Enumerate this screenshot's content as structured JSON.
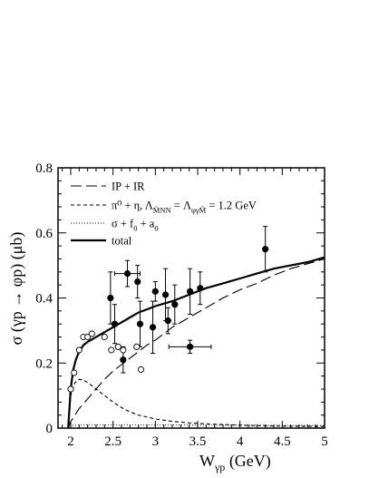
{
  "chart_data": {
    "type": "scatter",
    "xlabel_main": "W",
    "xlabel_sub": "γp",
    "xlabel_unit": " (GeV)",
    "ylabel": "σ (γp → φp) (μb)",
    "xlim": [
      1.85,
      5.0
    ],
    "ylim": [
      0,
      0.8
    ],
    "x_ticks": [
      2,
      2.5,
      3,
      3.5,
      4,
      4.5,
      5
    ],
    "x_tick_labels": [
      "2",
      "2.5",
      "3",
      "3.5",
      "4",
      "4.5",
      "5"
    ],
    "y_ticks": [
      0,
      0.2,
      0.4,
      0.6,
      0.8
    ],
    "y_tick_labels": [
      "0",
      "0.2",
      "0.4",
      "0.6",
      "0.8"
    ],
    "grid": false,
    "legend_position": "top-left",
    "legend": [
      {
        "style": "longdash",
        "text": "IP + IR"
      },
      {
        "style": "dash",
        "text": "π⁰ + η,   Λ",
        "sub1": "M̃NN",
        "mid": " = Λ",
        "sub2": "φγM̃",
        "tail": " = 1.2 GeV"
      },
      {
        "style": "dot",
        "text": "σ + f",
        "sub1": "0",
        "mid": " + a",
        "sub2": "0"
      },
      {
        "style": "solid",
        "text": "total"
      }
    ],
    "series": [
      {
        "style": "longdash",
        "x": [
          1.97,
          2.0,
          2.05,
          2.1,
          2.2,
          2.3,
          2.4,
          2.5,
          2.6,
          2.7,
          2.8,
          2.9,
          3.0,
          3.1,
          3.2,
          3.4,
          3.6,
          3.8,
          4.0,
          4.2,
          4.4,
          4.6,
          4.8,
          5.0
        ],
        "y": [
          0.0,
          0.02,
          0.04,
          0.06,
          0.09,
          0.12,
          0.15,
          0.175,
          0.195,
          0.215,
          0.235,
          0.255,
          0.27,
          0.29,
          0.31,
          0.34,
          0.37,
          0.4,
          0.425,
          0.445,
          0.47,
          0.49,
          0.505,
          0.52
        ]
      },
      {
        "style": "dash",
        "x": [
          1.97,
          2.0,
          2.05,
          2.1,
          2.15,
          2.2,
          2.3,
          2.4,
          2.5,
          2.6,
          2.7,
          2.8,
          3.0,
          3.2,
          3.4,
          3.6,
          3.8,
          4.0,
          4.5,
          5.0
        ],
        "y": [
          0.0,
          0.1,
          0.14,
          0.15,
          0.148,
          0.14,
          0.12,
          0.1,
          0.08,
          0.063,
          0.05,
          0.04,
          0.028,
          0.021,
          0.016,
          0.013,
          0.011,
          0.009,
          0.006,
          0.005
        ]
      },
      {
        "style": "dot",
        "x": [
          1.97,
          2.0,
          2.2,
          2.5,
          3.0,
          3.5,
          4.0,
          4.5,
          5.0
        ],
        "y": [
          0.0,
          0.008,
          0.01,
          0.01,
          0.01,
          0.009,
          0.009,
          0.008,
          0.008
        ]
      },
      {
        "style": "solid",
        "x": [
          1.97,
          2.0,
          2.03,
          2.06,
          2.1,
          2.15,
          2.2,
          2.3,
          2.4,
          2.5,
          2.6,
          2.7,
          2.8,
          2.9,
          3.0,
          3.2,
          3.4,
          3.6,
          3.8,
          4.0,
          4.2,
          4.4,
          4.6,
          4.8,
          5.0
        ],
        "y": [
          0.0,
          0.12,
          0.18,
          0.21,
          0.235,
          0.255,
          0.265,
          0.28,
          0.295,
          0.31,
          0.325,
          0.34,
          0.355,
          0.365,
          0.375,
          0.39,
          0.41,
          0.43,
          0.445,
          0.46,
          0.475,
          0.49,
          0.5,
          0.51,
          0.525
        ]
      }
    ],
    "points_filled": [
      {
        "x": 2.47,
        "y": 0.4,
        "ey": 0.08,
        "ex": 0
      },
      {
        "x": 2.52,
        "y": 0.32,
        "ey": 0.06,
        "ex": 0
      },
      {
        "x": 2.62,
        "y": 0.21,
        "ey": 0.04,
        "ex": 0
      },
      {
        "x": 2.67,
        "y": 0.475,
        "ey": 0.04,
        "ex": 0.15
      },
      {
        "x": 2.79,
        "y": 0.45,
        "ey": 0.05,
        "ex": 0
      },
      {
        "x": 2.82,
        "y": 0.32,
        "ey": 0.07,
        "ex": 0
      },
      {
        "x": 2.97,
        "y": 0.31,
        "ey": 0.08,
        "ex": 0
      },
      {
        "x": 3.0,
        "y": 0.42,
        "ey": 0.03,
        "ex": 0
      },
      {
        "x": 3.12,
        "y": 0.41,
        "ey": 0.08,
        "ex": 0
      },
      {
        "x": 3.15,
        "y": 0.33,
        "ey": 0.04,
        "ex": 0
      },
      {
        "x": 3.23,
        "y": 0.38,
        "ey": 0.06,
        "ex": 0
      },
      {
        "x": 3.41,
        "y": 0.42,
        "ey": 0.07,
        "ex": 0
      },
      {
        "x": 3.41,
        "y": 0.25,
        "ey": 0.02,
        "ex": 0.25
      },
      {
        "x": 3.53,
        "y": 0.43,
        "ey": 0.05,
        "ex": 0
      },
      {
        "x": 4.3,
        "y": 0.55,
        "ey": 0.07,
        "ex": 0
      }
    ],
    "points_open": [
      {
        "x": 2.0,
        "y": 0.12
      },
      {
        "x": 2.04,
        "y": 0.17
      },
      {
        "x": 2.1,
        "y": 0.24
      },
      {
        "x": 2.15,
        "y": 0.28
      },
      {
        "x": 2.2,
        "y": 0.28
      },
      {
        "x": 2.25,
        "y": 0.29
      },
      {
        "x": 2.4,
        "y": 0.28
      },
      {
        "x": 2.48,
        "y": 0.24
      },
      {
        "x": 2.56,
        "y": 0.25
      },
      {
        "x": 2.62,
        "y": 0.24
      },
      {
        "x": 2.78,
        "y": 0.25
      },
      {
        "x": 2.83,
        "y": 0.18
      }
    ]
  }
}
